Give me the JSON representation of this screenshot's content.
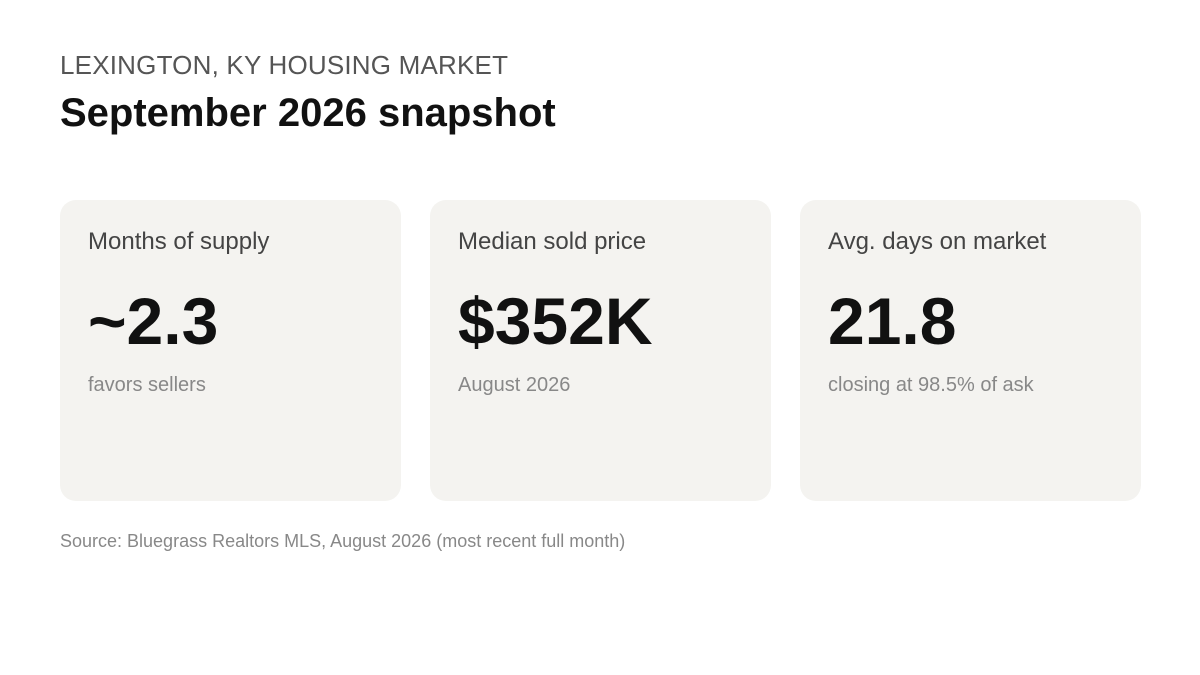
{
  "header": {
    "eyebrow": "LEXINGTON, KY HOUSING MARKET",
    "title": "September 2026 snapshot"
  },
  "cards": [
    {
      "label": "Months of supply",
      "value": "~2.3",
      "note": "favors sellers"
    },
    {
      "label": "Median sold price",
      "value": "$352K",
      "note": "August 2026"
    },
    {
      "label": "Avg. days on market",
      "value": "21.8",
      "note": "closing at 98.5% of ask"
    }
  ],
  "footer": {
    "source": "Source: Bluegrass Realtors MLS, August 2026 (most recent full month)"
  },
  "colors": {
    "card_background": "#f4f3f0",
    "eyebrow_text": "#555555",
    "muted_text": "#888888",
    "primary_text": "#111111"
  }
}
